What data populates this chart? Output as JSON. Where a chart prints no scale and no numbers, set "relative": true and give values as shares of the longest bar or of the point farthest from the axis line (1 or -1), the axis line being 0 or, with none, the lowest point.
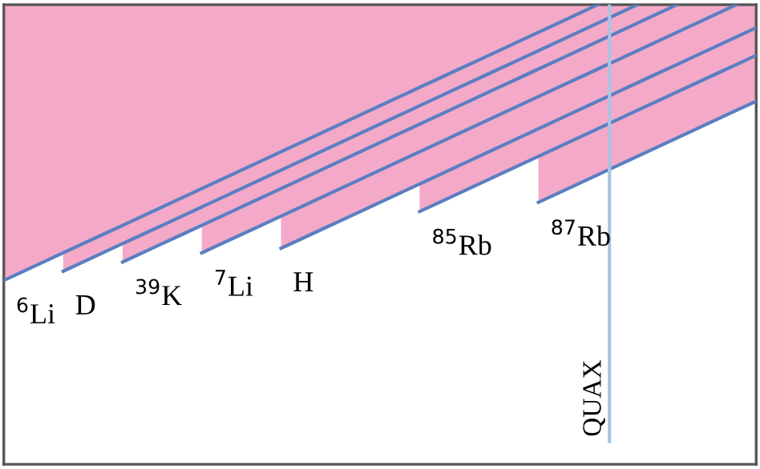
{
  "chart_data": {
    "type": "line",
    "relative": true,
    "categories": [
      null,
      null,
      null,
      null,
      null,
      null,
      null,
      null,
      null,
      null,
      null,
      null,
      null,
      null,
      null,
      null,
      null,
      null,
      null,
      null,
      null,
      null,
      null,
      null,
      null,
      null,
      null,
      null,
      null,
      null,
      null,
      null,
      null,
      null,
      null,
      null,
      null,
      null,
      null
    ],
    "series": [
      {
        "name": "$^{6}$Li",
        "color": "#5a7fc0",
        "values": [
          0.4,
          0.42,
          0.44,
          0.46,
          0.48,
          0.5,
          0.52,
          0.54,
          0.56,
          0.58,
          0.6,
          0.62,
          0.64,
          0.66,
          0.68,
          0.7,
          0.72,
          0.74,
          0.76,
          0.78,
          0.8,
          0.82,
          0.84,
          0.86,
          0.88,
          0.9,
          0.92,
          0.94,
          0.96,
          0.98,
          1.0,
          null,
          null,
          null,
          null,
          null,
          null,
          null,
          null
        ]
      },
      {
        "name": "D",
        "color": "#5a7fc0",
        "values": [
          null,
          null,
          null,
          0.42,
          0.44,
          0.46,
          0.48,
          0.5,
          0.52,
          0.54,
          0.56,
          0.58,
          0.6,
          0.62,
          0.64,
          0.66,
          0.68,
          0.7,
          0.72,
          0.74,
          0.76,
          0.78,
          0.8,
          0.82,
          0.84,
          0.86,
          0.88,
          0.9,
          0.92,
          0.94,
          0.96,
          0.98,
          1.0,
          null,
          null,
          null,
          null,
          null,
          null
        ]
      },
      {
        "name": "$^{39}$K",
        "color": "#5a7fc0",
        "values": [
          null,
          null,
          null,
          null,
          null,
          null,
          0.44,
          0.46,
          0.48,
          0.5,
          0.52,
          0.54,
          0.56,
          0.58,
          0.6,
          0.62,
          0.64,
          0.66,
          0.68,
          0.7,
          0.72,
          0.74,
          0.76,
          0.78,
          0.8,
          0.82,
          0.84,
          0.86,
          0.88,
          0.9,
          0.92,
          0.94,
          0.96,
          0.98,
          1.0,
          null,
          null,
          null,
          null
        ]
      },
      {
        "name": "$^{7}$Li",
        "color": "#5a7fc0",
        "values": [
          null,
          null,
          null,
          null,
          null,
          null,
          null,
          null,
          null,
          null,
          0.46,
          0.48,
          0.5,
          0.52,
          0.54,
          0.56,
          0.58,
          0.6,
          0.62,
          0.64,
          0.66,
          0.68,
          0.7,
          0.72,
          0.74,
          0.76,
          0.78,
          0.8,
          0.82,
          0.84,
          0.86,
          0.88,
          0.9,
          0.92,
          0.94,
          0.96,
          0.98,
          1.0,
          null
        ]
      },
      {
        "name": "H",
        "color": "#5a7fc0",
        "values": [
          null,
          null,
          null,
          null,
          null,
          null,
          null,
          null,
          null,
          null,
          null,
          null,
          null,
          null,
          0.47,
          0.49,
          0.51,
          0.53,
          0.55,
          0.57,
          0.59,
          0.61,
          0.63,
          0.65,
          0.67,
          0.69,
          0.71,
          0.73,
          0.75,
          0.77,
          0.79,
          0.81,
          0.83,
          0.85,
          0.87,
          0.89,
          0.91,
          0.93,
          0.95
        ]
      },
      {
        "name": "$^{85}$Rb",
        "color": "#5a7fc0",
        "values": [
          null,
          null,
          null,
          null,
          null,
          null,
          null,
          null,
          null,
          null,
          null,
          null,
          null,
          null,
          null,
          null,
          null,
          null,
          null,
          null,
          null,
          0.55,
          0.57,
          0.59,
          0.61,
          0.63,
          0.65,
          0.67,
          0.69,
          0.71,
          0.73,
          0.75,
          0.77,
          0.79,
          0.81,
          0.83,
          0.85,
          0.87,
          0.89
        ]
      },
      {
        "name": "$^{87}$Rb",
        "color": "#5a7fc0",
        "values": [
          null,
          null,
          null,
          null,
          null,
          null,
          null,
          null,
          null,
          null,
          null,
          null,
          null,
          null,
          null,
          null,
          null,
          null,
          null,
          null,
          null,
          null,
          null,
          null,
          null,
          null,
          null,
          0.57,
          0.59,
          0.61,
          0.63,
          0.65,
          0.67,
          0.69,
          0.71,
          0.73,
          0.75,
          0.77,
          0.79
        ]
      }
    ],
    "annotations": [
      "QUAX"
    ]
  }
}
